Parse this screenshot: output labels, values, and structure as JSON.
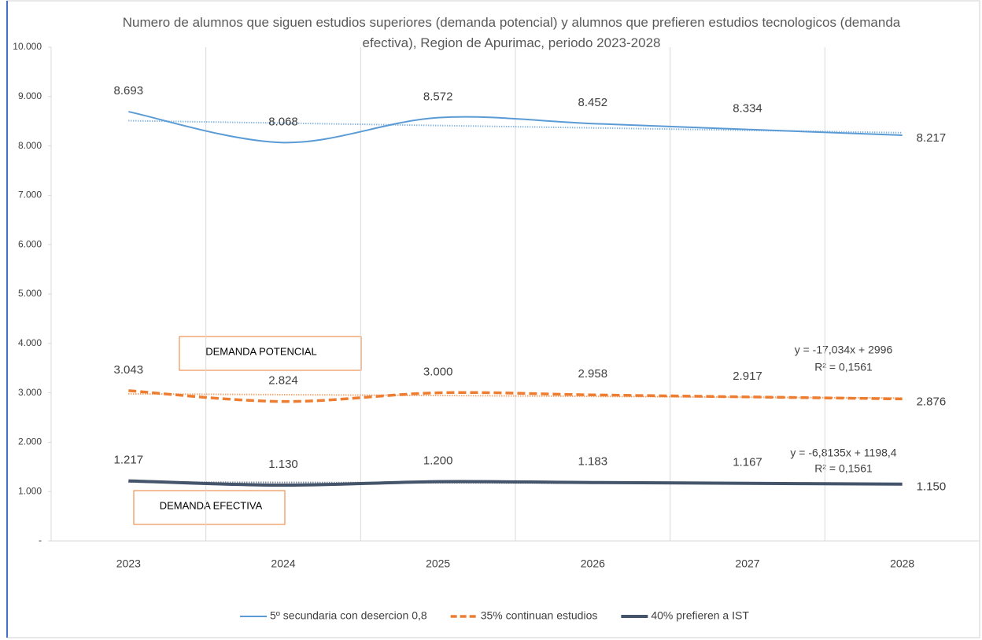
{
  "chart_data": {
    "type": "line",
    "title": "Numero de alumnos que siguen estudios superiores (demanda potencial) y alumnos que prefieren estudios tecnologicos (demanda efectiva), Region de Apurimac, periodo 2023-2028",
    "categories": [
      "2023",
      "2024",
      "2025",
      "2026",
      "2027",
      "2028"
    ],
    "series": [
      {
        "name": "5º secundaria con desercion 0,8",
        "color": "#5b9bd5",
        "dash": "solid",
        "trendline": true,
        "values": [
          8693,
          8068,
          8572,
          8452,
          8334,
          8217
        ],
        "value_labels": [
          "8.693",
          "8.068",
          "8.572",
          "8.452",
          "8.334",
          "8.217"
        ]
      },
      {
        "name": "35% continuan estudios",
        "color": "#ed7d31",
        "dash": "dashed",
        "trendline": true,
        "values": [
          3043,
          2824,
          3000,
          2958,
          2917,
          2876
        ],
        "value_labels": [
          "3.043",
          "2.824",
          "3.000",
          "2.958",
          "2.917",
          "2.876"
        ]
      },
      {
        "name": "40% prefieren a IST",
        "color": "#44546a",
        "dash": "solid",
        "trendline": true,
        "values": [
          1217,
          1130,
          1200,
          1183,
          1167,
          1150
        ],
        "value_labels": [
          "1.217",
          "1.130",
          "1.200",
          "1.183",
          "1.167",
          "1.150"
        ]
      }
    ],
    "ylim": [
      0,
      10000
    ],
    "yticks": [
      {
        "value": 0,
        "label": "-"
      },
      {
        "value": 1000,
        "label": "1.000"
      },
      {
        "value": 2000,
        "label": "2.000"
      },
      {
        "value": 3000,
        "label": "3.000"
      },
      {
        "value": 4000,
        "label": "4.000"
      },
      {
        "value": 5000,
        "label": "5.000"
      },
      {
        "value": 6000,
        "label": "6.000"
      },
      {
        "value": 7000,
        "label": "7.000"
      },
      {
        "value": 8000,
        "label": "8.000"
      },
      {
        "value": 9000,
        "label": "9.000"
      },
      {
        "value": 10000,
        "label": "10.000"
      }
    ],
    "annotations": [
      "DEMANDA POTENCIAL",
      "DEMANDA EFECTIVA",
      "y = -17,034x + 2996",
      "R² = 0,1561",
      "y = -6,8135x + 1198,4",
      "R² = 0,1561"
    ],
    "legend": "bottom"
  }
}
